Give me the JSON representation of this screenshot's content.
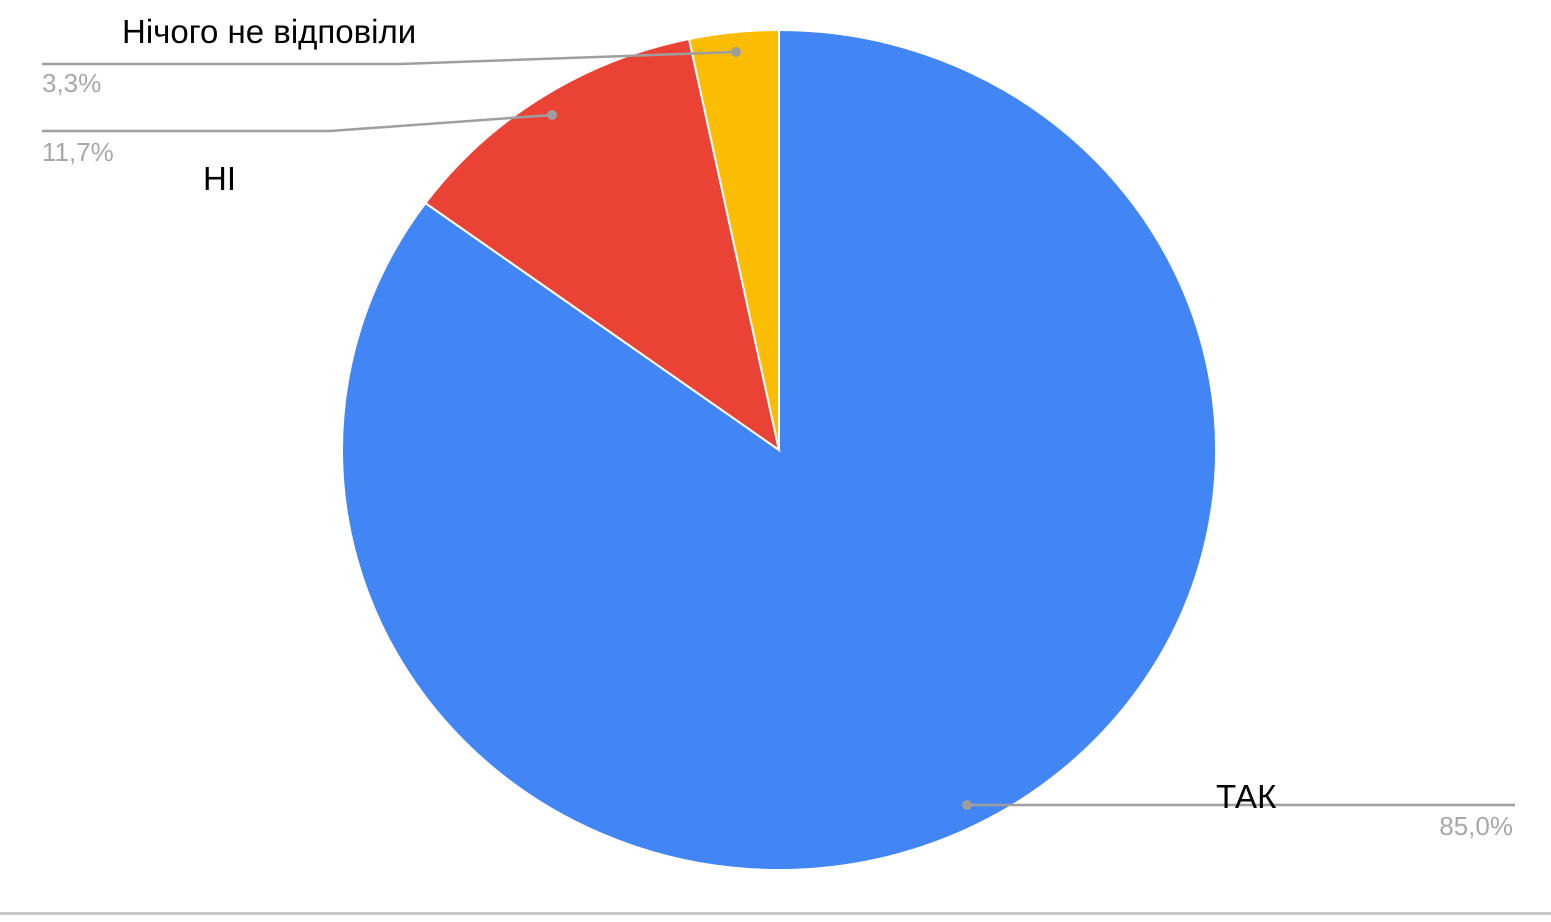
{
  "chart_data": {
    "type": "pie",
    "title": "",
    "start_angle_deg": 0,
    "direction": "clockwise",
    "slices": [
      {
        "label": "ТАК",
        "value": 85.0,
        "percent_label": "85,0%",
        "color": "#4285f4"
      },
      {
        "label": "НІ",
        "value": 11.7,
        "percent_label": "11,7%",
        "color": "#ea4335"
      },
      {
        "label": "Нічого не відповіли",
        "value": 3.3,
        "percent_label": "3,3%",
        "color": "#fbbc04"
      }
    ],
    "legend": "none",
    "label_style": "outside with leader lines"
  }
}
